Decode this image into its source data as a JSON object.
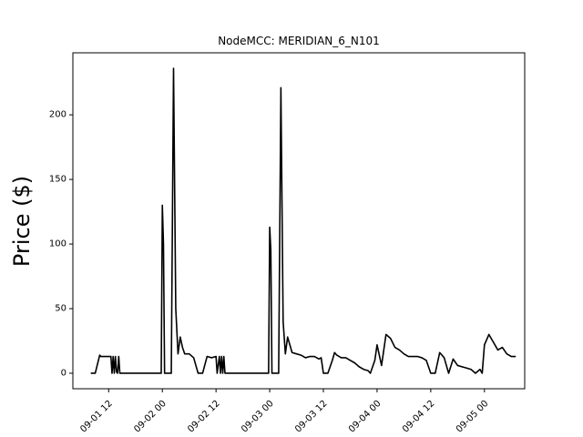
{
  "chart_data": {
    "type": "line",
    "title": "NodeMCC: MERIDIAN_6_N101",
    "xlabel": "",
    "ylabel": "Price ($)",
    "xlim": [
      "2022-09-01 04:00",
      "2022-09-05 09:00"
    ],
    "ylim": [
      -12,
      248
    ],
    "grid": false,
    "legend": "none",
    "line_color": "#000000",
    "x_ticks": [
      {
        "at": "2022-09-01 12:00",
        "label": "09-01 12"
      },
      {
        "at": "2022-09-02 00:00",
        "label": "09-02 00"
      },
      {
        "at": "2022-09-02 12:00",
        "label": "09-02 12"
      },
      {
        "at": "2022-09-03 00:00",
        "label": "09-03 00"
      },
      {
        "at": "2022-09-03 12:00",
        "label": "09-03 12"
      },
      {
        "at": "2022-09-04 00:00",
        "label": "09-04 00"
      },
      {
        "at": "2022-09-04 12:00",
        "label": "09-04 12"
      },
      {
        "at": "2022-09-05 00:00",
        "label": "09-05 00"
      }
    ],
    "y_ticks": [
      0,
      50,
      100,
      150,
      200
    ],
    "series": [
      {
        "x": [
          "2022-09-01 08:00",
          "2022-09-01 09:00",
          "2022-09-01 10:00",
          "2022-09-01 10:15",
          "2022-09-01 11:00",
          "2022-09-01 12:00",
          "2022-09-01 12:30",
          "2022-09-01 12:45",
          "2022-09-01 13:00",
          "2022-09-01 13:15",
          "2022-09-01 13:30",
          "2022-09-01 13:45",
          "2022-09-01 14:00",
          "2022-09-01 14:15",
          "2022-09-01 14:30",
          "2022-09-01 14:45",
          "2022-09-01 15:00",
          "2022-09-01 16:00",
          "2022-09-01 18:00",
          "2022-09-01 20:00",
          "2022-09-01 22:00",
          "2022-09-01 23:45",
          "2022-09-02 00:00",
          "2022-09-02 00:15",
          "2022-09-02 00:30",
          "2022-09-02 01:00",
          "2022-09-02 02:00",
          "2022-09-02 02:30",
          "2022-09-02 03:00",
          "2022-09-02 03:30",
          "2022-09-02 04:00",
          "2022-09-02 04:30",
          "2022-09-02 05:00",
          "2022-09-02 05:30",
          "2022-09-02 06:00",
          "2022-09-02 07:00",
          "2022-09-02 08:00",
          "2022-09-02 09:00",
          "2022-09-02 10:00",
          "2022-09-02 11:00",
          "2022-09-02 12:00",
          "2022-09-02 12:15",
          "2022-09-02 12:45",
          "2022-09-02 13:00",
          "2022-09-02 13:15",
          "2022-09-02 13:30",
          "2022-09-02 13:45",
          "2022-09-02 14:00",
          "2022-09-02 14:15",
          "2022-09-02 14:30",
          "2022-09-02 14:45",
          "2022-09-02 15:00",
          "2022-09-02 16:00",
          "2022-09-02 18:00",
          "2022-09-02 20:00",
          "2022-09-02 22:00",
          "2022-09-02 23:45",
          "2022-09-03 00:00",
          "2022-09-03 00:15",
          "2022-09-03 00:30",
          "2022-09-03 01:00",
          "2022-09-03 02:00",
          "2022-09-03 02:30",
          "2022-09-03 03:00",
          "2022-09-03 03:30",
          "2022-09-03 04:00",
          "2022-09-03 05:00",
          "2022-09-03 06:00",
          "2022-09-03 07:00",
          "2022-09-03 08:00",
          "2022-09-03 09:00",
          "2022-09-03 10:00",
          "2022-09-03 11:00",
          "2022-09-03 11:30",
          "2022-09-03 12:00",
          "2022-09-03 13:00",
          "2022-09-03 14:00",
          "2022-09-03 14:30",
          "2022-09-03 15:00",
          "2022-09-03 16:00",
          "2022-09-03 17:00",
          "2022-09-03 18:00",
          "2022-09-03 19:00",
          "2022-09-03 20:00",
          "2022-09-03 21:00",
          "2022-09-03 22:00",
          "2022-09-03 22:30",
          "2022-09-03 23:00",
          "2022-09-03 23:30",
          "2022-09-04 00:00",
          "2022-09-04 01:00",
          "2022-09-04 02:00",
          "2022-09-04 03:00",
          "2022-09-04 04:00",
          "2022-09-04 05:00",
          "2022-09-04 06:00",
          "2022-09-04 07:00",
          "2022-09-04 08:00",
          "2022-09-04 09:00",
          "2022-09-04 10:00",
          "2022-09-04 11:00",
          "2022-09-04 12:00",
          "2022-09-04 13:00",
          "2022-09-04 14:00",
          "2022-09-04 15:00",
          "2022-09-04 16:00",
          "2022-09-04 17:00",
          "2022-09-04 18:00",
          "2022-09-04 19:00",
          "2022-09-04 20:00",
          "2022-09-04 21:00",
          "2022-09-04 22:00",
          "2022-09-04 23:00",
          "2022-09-04 23:30",
          "2022-09-05 00:00",
          "2022-09-05 01:00",
          "2022-09-05 02:00",
          "2022-09-05 03:00",
          "2022-09-05 04:00",
          "2022-09-05 05:00",
          "2022-09-05 06:00",
          "2022-09-05 07:00"
        ],
        "y": [
          0,
          0,
          14,
          13,
          13,
          13,
          13,
          0,
          13,
          0,
          13,
          1,
          0,
          13,
          0,
          0,
          0,
          0,
          0,
          0,
          0,
          0,
          130,
          100,
          0,
          0,
          0,
          236,
          50,
          15,
          28,
          20,
          15,
          15,
          15,
          12,
          0,
          0,
          13,
          12,
          13,
          0,
          13,
          0,
          13,
          0,
          13,
          0,
          0,
          0,
          0,
          0,
          0,
          0,
          0,
          0,
          0,
          113,
          95,
          0,
          0,
          0,
          221,
          40,
          15,
          28,
          16,
          15,
          14,
          12,
          13,
          13,
          11,
          12,
          0,
          0,
          10,
          16,
          14,
          12,
          12,
          10,
          8,
          5,
          3,
          2,
          0,
          5,
          10,
          22,
          6,
          30,
          27,
          20,
          18,
          15,
          13,
          13,
          13,
          12,
          10,
          0,
          0,
          16,
          12,
          0,
          11,
          6,
          5,
          4,
          3,
          0,
          3,
          0,
          22,
          30,
          24,
          18,
          20,
          15,
          13,
          13
        ]
      }
    ]
  }
}
